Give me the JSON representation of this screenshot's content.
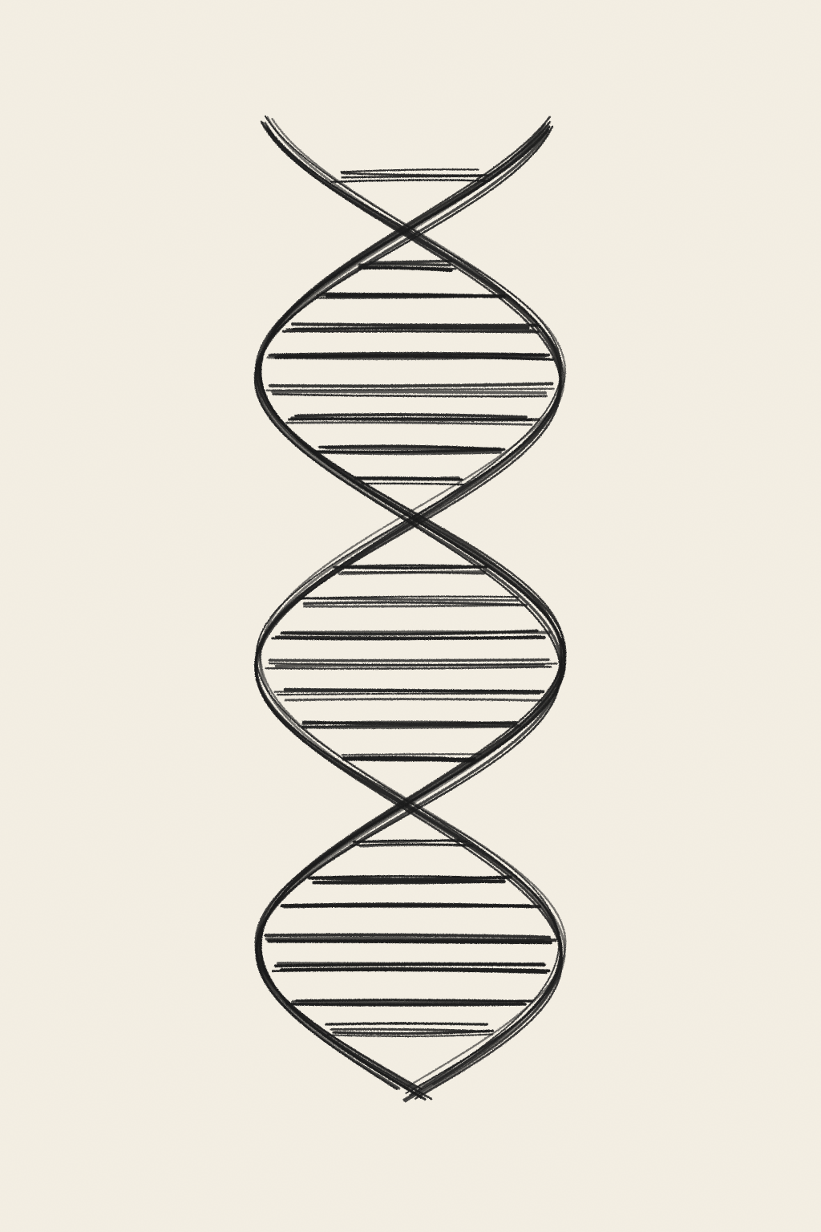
{
  "drawing": {
    "subject": "dna-double-helix",
    "medium": "pencil sketch",
    "colors": {
      "paper": "#f4efe4",
      "graphite": "#1b1b1b"
    }
  }
}
